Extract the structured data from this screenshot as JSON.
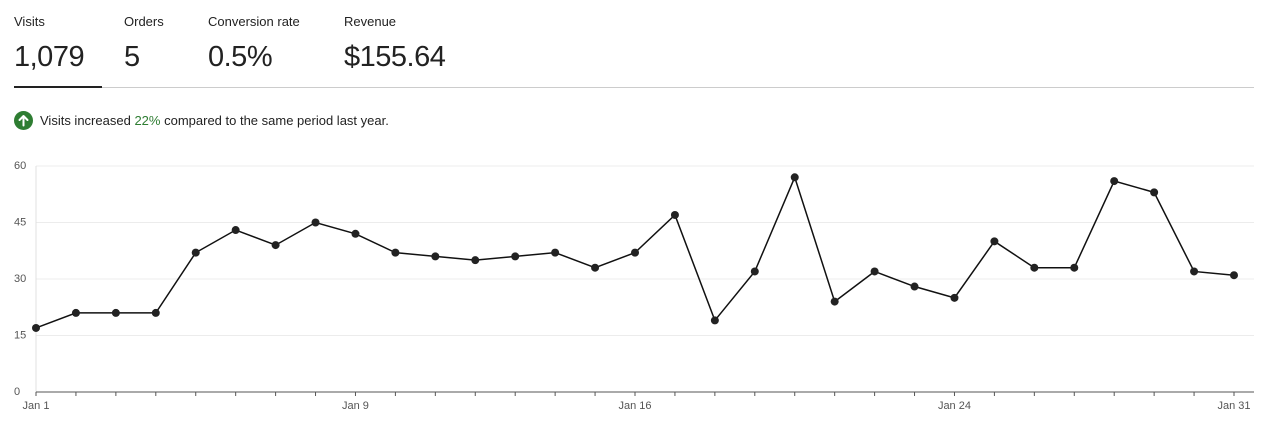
{
  "stats": [
    {
      "label": "Visits",
      "value": "1,079"
    },
    {
      "label": "Orders",
      "value": "5"
    },
    {
      "label": "Conversion rate",
      "value": "0.5%"
    },
    {
      "label": "Revenue",
      "value": "$155.64"
    }
  ],
  "notice": {
    "before": "Visits increased",
    "highlight": "22%",
    "after": "compared to the same period last year."
  },
  "chart_data": {
    "type": "line",
    "categories": [
      "Jan 1",
      null,
      null,
      null,
      null,
      null,
      null,
      null,
      "Jan 9",
      null,
      null,
      null,
      null,
      null,
      null,
      "Jan 16",
      null,
      null,
      null,
      null,
      null,
      null,
      null,
      "Jan 24",
      null,
      null,
      null,
      null,
      null,
      null,
      "Jan 31"
    ],
    "series": [
      {
        "name": "Visits",
        "color": "#111111",
        "values": [
          17,
          21,
          21,
          21,
          37,
          43,
          39,
          45,
          42,
          37,
          36,
          35,
          36,
          37,
          33,
          37,
          47,
          19,
          32,
          57,
          24,
          32,
          28,
          25,
          40,
          33,
          33,
          56,
          53,
          32,
          31
        ]
      }
    ],
    "ylim": [
      0,
      60
    ],
    "yticks": [
      0,
      15,
      30,
      45,
      60
    ],
    "grid": true
  }
}
